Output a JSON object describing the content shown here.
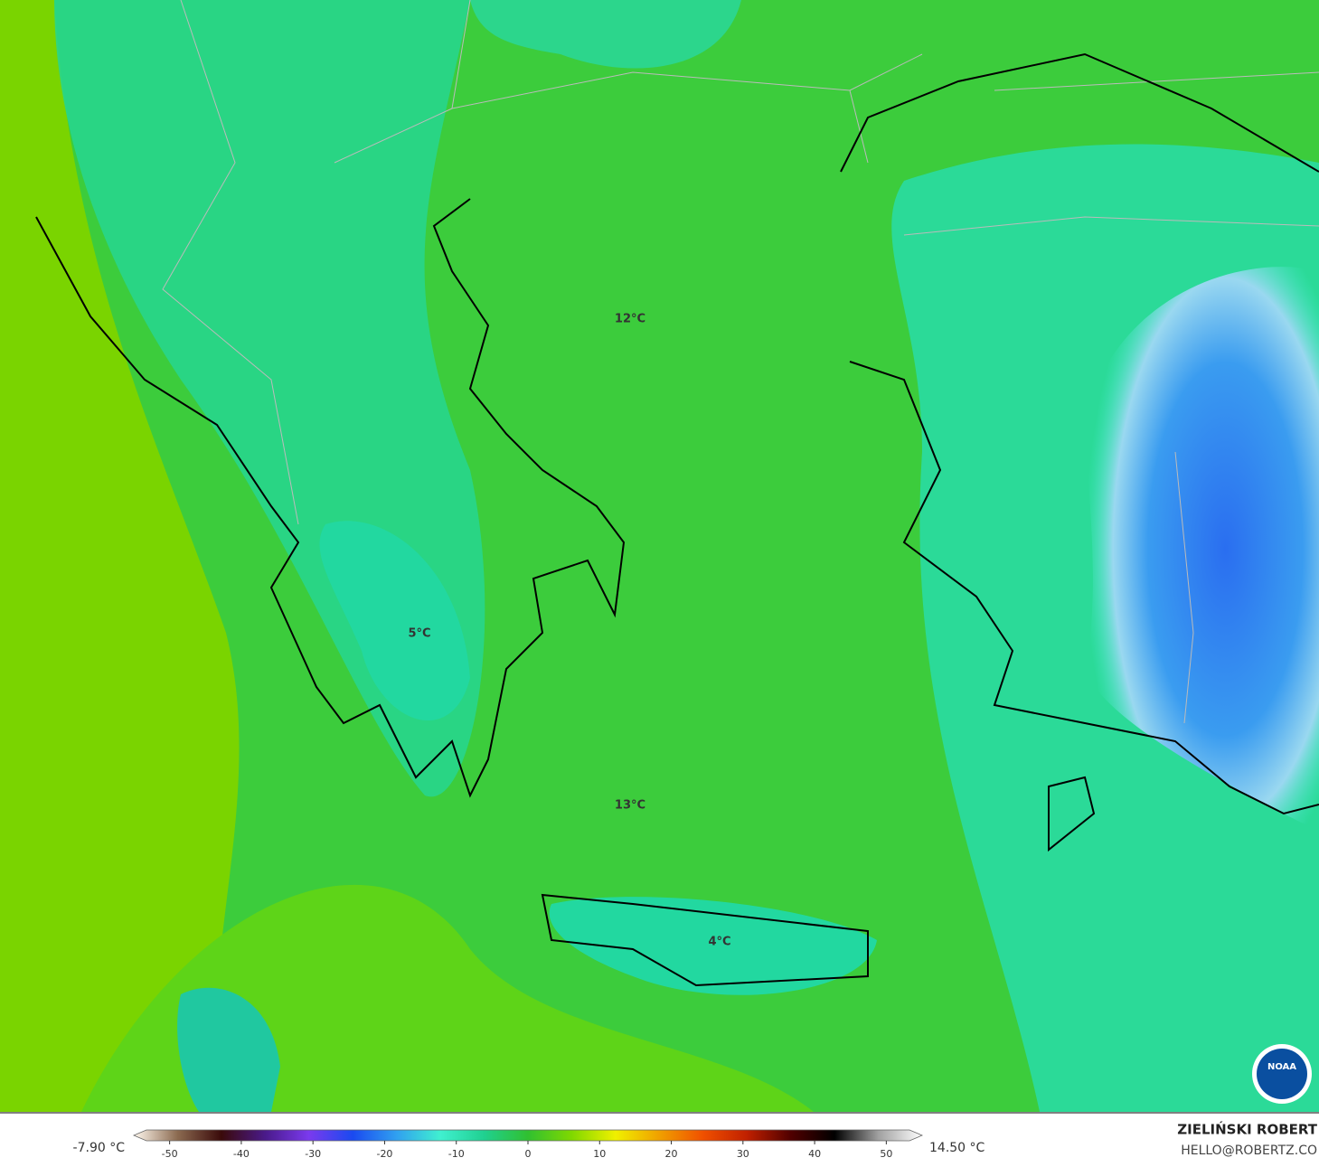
{
  "map": {
    "labels": [
      "12°C",
      "5°C",
      "13°C",
      "4°C"
    ],
    "logo": "NOAA"
  },
  "colorbar": {
    "min_label": "-7.90 °C",
    "max_label": "14.50 °C",
    "lim": [
      -55,
      55
    ],
    "ticks": [
      -50,
      -40,
      -30,
      -20,
      -10,
      0,
      10,
      20,
      30,
      40,
      50
    ],
    "colors": [
      "#fff8ee",
      "#8b6a50",
      "#3a0a0a",
      "#4a1a8a",
      "#7a3aee",
      "#1a4af0",
      "#30a0f0",
      "#40f0d0",
      "#20d090",
      "#30c030",
      "#80d800",
      "#f0f000",
      "#f0a000",
      "#f05000",
      "#c02000",
      "#500000",
      "#000000",
      "#a0a0a0",
      "#ffffff"
    ]
  },
  "credits": {
    "author": "ZIELIŃSKI ROBERT",
    "email": "HELLO@ROBERTZ.CO"
  }
}
